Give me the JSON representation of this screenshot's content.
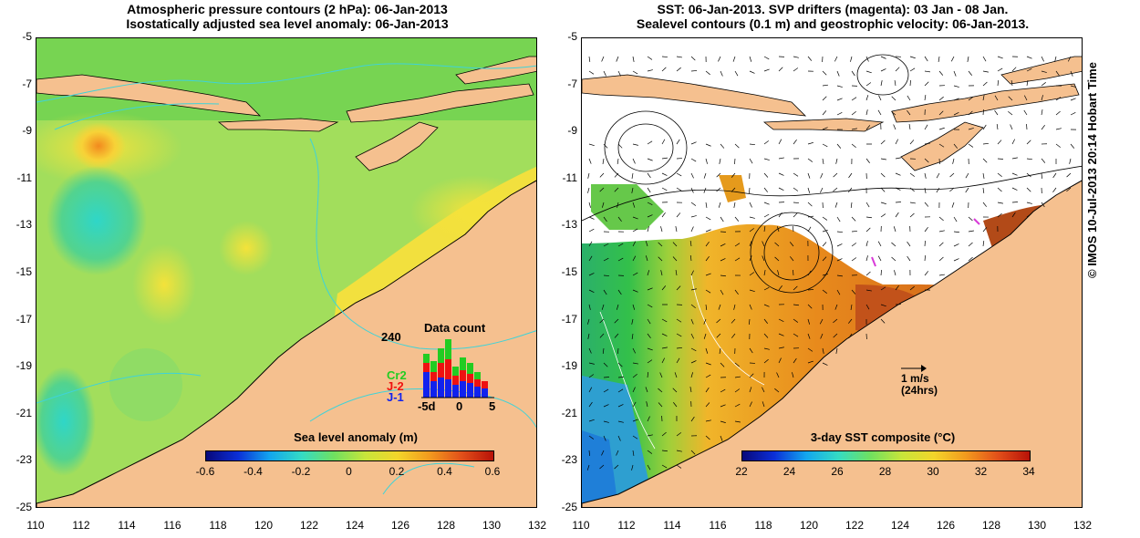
{
  "left_panel": {
    "title_line1": "Atmospheric pressure contours (2 hPa): 06-Jan-2013",
    "title_line2": "Isostatically adjusted sea level anomaly: 06-Jan-2013",
    "colorbar_label": "Sea level anomaly (m)",
    "colorbar_ticks": [
      "-0.6",
      "-0.4",
      "-0.2",
      "0",
      "0.2",
      "0.4",
      "0.6"
    ],
    "data_count": {
      "title": "Data count",
      "ymax_label": "240",
      "legend": [
        "Cr2",
        "J-2",
        "J-1"
      ],
      "legend_colors": [
        "#22cc22",
        "#ee1111",
        "#1122ee"
      ],
      "x_ticks": [
        "-5d",
        "0",
        "5"
      ]
    }
  },
  "right_panel": {
    "title_line1": "SST: 06-Jan-2013. SVP drifters (magenta): 03 Jan - 08 Jan.",
    "title_line2": "Sealevel contours (0.1 m) and geostrophic velocity: 06-Jan-2013.",
    "colorbar_label": "3-day SST composite (°C)",
    "colorbar_ticks": [
      "22",
      "24",
      "26",
      "28",
      "30",
      "32",
      "34"
    ],
    "velocity_scale": "1 m/s",
    "velocity_scale_sub": "(24hrs)"
  },
  "axes": {
    "y_ticks": [
      "-5",
      "-7",
      "-9",
      "-11",
      "-13",
      "-15",
      "-17",
      "-19",
      "-21",
      "-23",
      "-25"
    ],
    "x_ticks": [
      "110",
      "112",
      "114",
      "116",
      "118",
      "120",
      "122",
      "124",
      "126",
      "128",
      "130",
      "132"
    ]
  },
  "credit": "© IMOS 10-Jul-2013 20:14 Hobart Time",
  "colors": {
    "land": "#f5c08f",
    "ocean_bg": "#9be06a",
    "no_data": "#ffffff"
  }
}
